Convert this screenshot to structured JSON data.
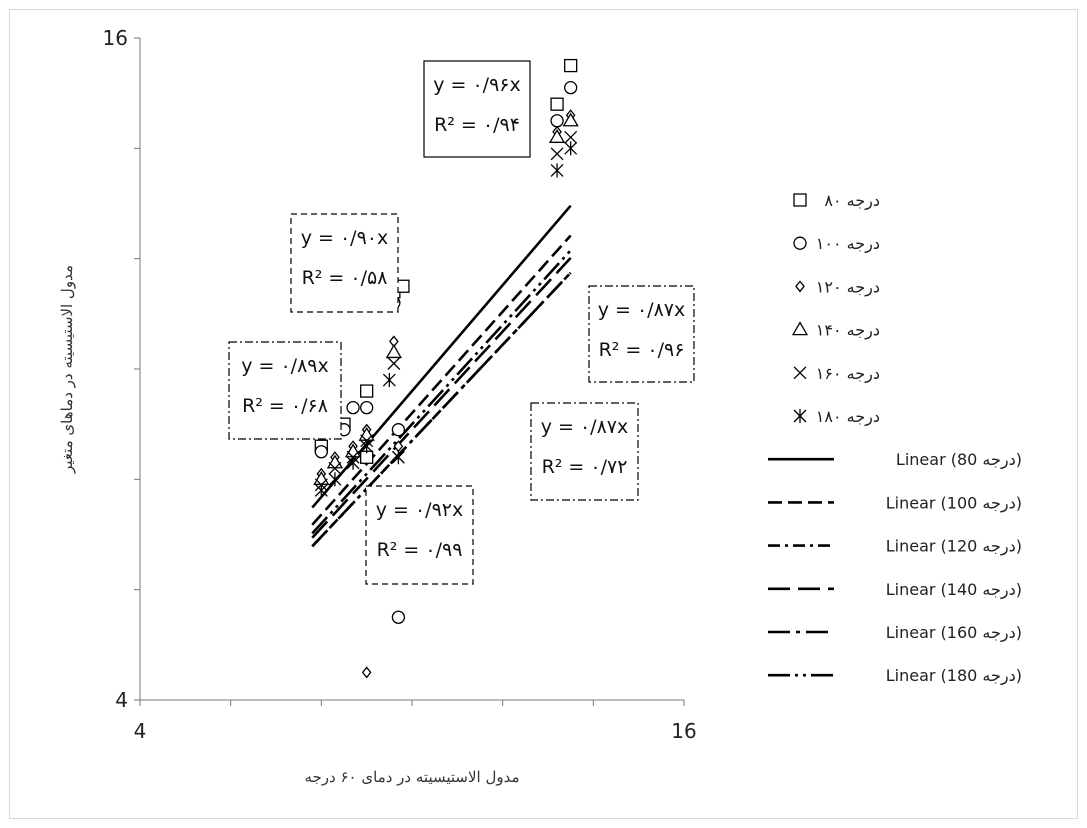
{
  "chart_data": {
    "type": "scatter",
    "xlabel": "مدول الاستیسیته در دمای ۶۰ درجه",
    "ylabel": "مدول الاستیسیته در دماهای متغیر",
    "xlim": [
      4,
      16
    ],
    "ylim": [
      4,
      16
    ],
    "x_tick_labels": [
      "4",
      "16"
    ],
    "y_tick_labels": [
      "16",
      "4"
    ],
    "grid": false,
    "legend_position": "right",
    "series": [
      {
        "name": "۸۰ درجه",
        "marker": "square",
        "points": [
          [
            8.0,
            8.6
          ],
          [
            8.5,
            9.0
          ],
          [
            9.0,
            9.6
          ],
          [
            9.0,
            8.4
          ],
          [
            9.6,
            11.4
          ],
          [
            9.8,
            11.5
          ],
          [
            13.2,
            14.8
          ],
          [
            13.5,
            15.5
          ]
        ]
      },
      {
        "name": "۱۰۰ درجه",
        "marker": "circle",
        "points": [
          [
            8.0,
            8.5
          ],
          [
            8.5,
            8.9
          ],
          [
            8.7,
            9.3
          ],
          [
            9.0,
            9.3
          ],
          [
            9.6,
            11.2
          ],
          [
            9.7,
            8.9
          ],
          [
            9.7,
            5.5
          ],
          [
            13.2,
            14.5
          ],
          [
            13.5,
            15.1
          ]
        ]
      },
      {
        "name": "۱۲۰ درجه",
        "marker": "diamond",
        "points": [
          [
            8.0,
            8.1
          ],
          [
            8.3,
            8.4
          ],
          [
            8.7,
            8.6
          ],
          [
            9.0,
            8.9
          ],
          [
            9.6,
            10.5
          ],
          [
            9.7,
            8.6
          ],
          [
            9.0,
            4.5
          ],
          [
            13.2,
            14.3
          ],
          [
            13.5,
            14.6
          ]
        ]
      },
      {
        "name": "۱۴۰ درجه",
        "marker": "triangle",
        "points": [
          [
            8.0,
            8.0
          ],
          [
            8.3,
            8.3
          ],
          [
            8.7,
            8.5
          ],
          [
            9.0,
            8.8
          ],
          [
            9.6,
            10.3
          ],
          [
            13.2,
            14.2
          ],
          [
            13.5,
            14.5
          ]
        ]
      },
      {
        "name": "۱۶۰ درجه",
        "marker": "x",
        "points": [
          [
            8.0,
            7.9
          ],
          [
            8.3,
            8.2
          ],
          [
            8.7,
            8.4
          ],
          [
            9.0,
            8.7
          ],
          [
            9.6,
            10.1
          ],
          [
            13.2,
            13.9
          ],
          [
            13.5,
            14.2
          ]
        ]
      },
      {
        "name": "۱۸۰ درجه",
        "marker": "asterisk",
        "points": [
          [
            8.0,
            7.8
          ],
          [
            8.3,
            8.0
          ],
          [
            8.7,
            8.3
          ],
          [
            9.0,
            8.6
          ],
          [
            9.5,
            9.8
          ],
          [
            9.7,
            8.4
          ],
          [
            13.2,
            13.6
          ],
          [
            13.5,
            14.0
          ]
        ]
      }
    ],
    "trendlines": [
      {
        "name": "Linear (80 درجه)",
        "slope": 0.96,
        "dash": "solid"
      },
      {
        "name": "Linear (100 درجه)",
        "slope": 0.92,
        "dash": "dash"
      },
      {
        "name": "Linear (120 درجه)",
        "slope": 0.87,
        "dash": "dashdot"
      },
      {
        "name": "Linear (140 درجه)",
        "slope": 0.89,
        "dash": "longdash"
      },
      {
        "name": "Linear (160 درجه)",
        "slope": 0.87,
        "dash": "longdashdot"
      },
      {
        "name": "Linear (180 درجه)",
        "slope": 0.9,
        "dash": "longdashdotdot"
      }
    ],
    "annotations": [
      {
        "eq": "y = ۰/۹۶x",
        "r2": "R² = ۰/۹۴",
        "border": "solid"
      },
      {
        "eq": "y = ۰/۹۰x",
        "r2": "R² = ۰/۵۸",
        "border": "dashed"
      },
      {
        "eq": "y = ۰/۸۹x",
        "r2": "R² = ۰/۶۸",
        "border": "dashdot"
      },
      {
        "eq": "y = ۰/۸۷x",
        "r2": "R² = ۰/۹۶",
        "border": "dashdot"
      },
      {
        "eq": "y = ۰/۸۷x",
        "r2": "R² = ۰/۷۲",
        "border": "dashdot"
      },
      {
        "eq": "y = ۰/۹۲x",
        "r2": "R² = ۰/۹۹",
        "border": "dashed"
      }
    ]
  }
}
